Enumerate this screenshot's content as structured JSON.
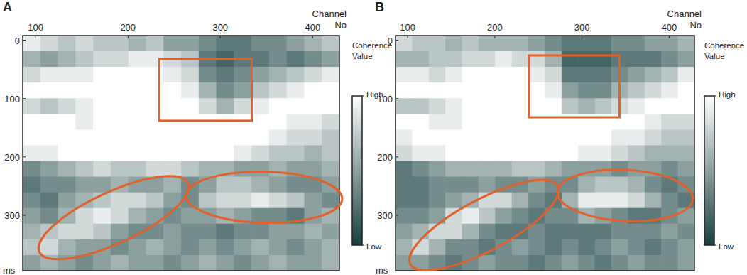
{
  "chart_data": [
    {
      "type": "heatmap",
      "title": "A",
      "x_label": "Channel No",
      "y_label": "ms",
      "xlim": [
        86,
        429
      ],
      "xticks": [
        100,
        200,
        300,
        400
      ],
      "ylim": [
        -8,
        395
      ],
      "yticks": [
        0,
        100,
        200,
        300
      ],
      "cells": [
        [
          0.9,
          0.8,
          0.7,
          0.8,
          0.7,
          0.7,
          0.6,
          0.7,
          0.5,
          0.5,
          0.4,
          0.3,
          0.3,
          0.4,
          0.4,
          0.5,
          0.6,
          0.7
        ],
        [
          0.6,
          0.5,
          0.6,
          0.7,
          0.8,
          0.8,
          0.9,
          0.9,
          0.8,
          0.7,
          0.3,
          0.2,
          0.3,
          0.3,
          0.4,
          0.3,
          0.4,
          0.5
        ],
        [
          0.8,
          0.9,
          0.9,
          0.9,
          1,
          1,
          1,
          1,
          0.9,
          0.8,
          0.4,
          0.3,
          0.4,
          0.5,
          0.6,
          0.7,
          0.8,
          0.9
        ],
        [
          1,
          1,
          1,
          1,
          1,
          1,
          1,
          1,
          1,
          0.9,
          0.6,
          0.4,
          0.5,
          0.7,
          0.8,
          0.9,
          1,
          1
        ],
        [
          0.8,
          0.7,
          0.8,
          0.9,
          1,
          1,
          1,
          1,
          1,
          1,
          0.8,
          0.6,
          0.8,
          0.9,
          1,
          1,
          1,
          1
        ],
        [
          1,
          1,
          1,
          0.9,
          1,
          1,
          1,
          1,
          1,
          1,
          1,
          1,
          1,
          1,
          1,
          0.9,
          0.9,
          0.8
        ],
        [
          1,
          1,
          1,
          1,
          1,
          1,
          1,
          1,
          1,
          1,
          1,
          1,
          1,
          1,
          0.9,
          0.8,
          0.8,
          0.7
        ],
        [
          0.9,
          0.9,
          1,
          1,
          1,
          1,
          1,
          1,
          1,
          1,
          1,
          1,
          0.9,
          0.8,
          0.7,
          0.7,
          0.6,
          0.7
        ],
        [
          0.4,
          0.5,
          0.6,
          0.7,
          0.8,
          0.7,
          0.7,
          0.8,
          0.8,
          0.7,
          0.6,
          0.6,
          0.5,
          0.5,
          0.6,
          0.5,
          0.5,
          0.6
        ],
        [
          0.3,
          0.4,
          0.4,
          0.5,
          0.5,
          0.6,
          0.5,
          0.5,
          0.6,
          0.4,
          0.5,
          0.7,
          0.7,
          0.6,
          0.5,
          0.4,
          0.4,
          0.5
        ],
        [
          0.4,
          0.3,
          0.5,
          0.6,
          0.7,
          0.8,
          0.8,
          0.7,
          0.5,
          0.4,
          0.7,
          0.8,
          0.8,
          0.9,
          0.8,
          0.7,
          0.5,
          0.4
        ],
        [
          0.5,
          0.4,
          0.6,
          0.8,
          0.9,
          0.8,
          0.6,
          0.5,
          0.4,
          0.5,
          0.5,
          0.6,
          0.5,
          0.4,
          0.4,
          0.3,
          0.5,
          0.6
        ],
        [
          0.6,
          0.7,
          0.8,
          0.8,
          0.7,
          0.5,
          0.4,
          0.4,
          0.5,
          0.4,
          0.4,
          0.3,
          0.4,
          0.4,
          0.5,
          0.5,
          0.6,
          0.5
        ],
        [
          0.7,
          0.8,
          0.6,
          0.5,
          0.5,
          0.4,
          0.5,
          0.6,
          0.5,
          0.4,
          0.5,
          0.4,
          0.5,
          0.6,
          0.5,
          0.4,
          0.5,
          0.6
        ],
        [
          0.5,
          0.6,
          0.5,
          0.4,
          0.5,
          0.6,
          0.5,
          0.5,
          0.4,
          0.5,
          0.6,
          0.5,
          0.4,
          0.5,
          0.6,
          0.5,
          0.5,
          0.6
        ]
      ],
      "colorbar": {
        "label": "Coherence Value",
        "range": [
          0,
          1
        ],
        "colors": [
          "#17403f",
          "#ffffff"
        ],
        "ticks": [
          {
            "value": 1,
            "label": "High"
          },
          {
            "value": 0,
            "label": "Low"
          }
        ]
      },
      "annotations": [
        {
          "shape": "rect",
          "x": [
            234,
            334
          ],
          "y": [
            32,
            138
          ],
          "color": "#e0612a"
        },
        {
          "shape": "ellipse",
          "x": [
            104,
            265
          ],
          "y": [
            363,
            245
          ],
          "color": "#e0612a"
        },
        {
          "shape": "ellipse",
          "x": [
            263,
            432
          ],
          "y": [
            266,
            272
          ],
          "color": "#e0612a"
        }
      ]
    },
    {
      "type": "heatmap",
      "title": "B",
      "x_label": "Channel No",
      "y_label": "ms",
      "xlim": [
        86,
        429
      ],
      "xticks": [
        100,
        200,
        300,
        400
      ],
      "ylim": [
        -8,
        395
      ],
      "yticks": [
        0,
        100,
        200,
        300
      ],
      "cells": [
        [
          0.8,
          0.7,
          0.7,
          0.6,
          0.7,
          0.6,
          0.6,
          0.6,
          0.5,
          0.4,
          0.3,
          0.3,
          0.3,
          0.4,
          0.4,
          0.5,
          0.5,
          0.6
        ],
        [
          0.6,
          0.6,
          0.7,
          0.7,
          0.8,
          0.8,
          0.9,
          0.8,
          0.8,
          0.6,
          0.2,
          0.2,
          0.2,
          0.3,
          0.3,
          0.3,
          0.4,
          0.5
        ],
        [
          0.9,
          0.9,
          0.8,
          0.9,
          1,
          1,
          1,
          1,
          0.9,
          0.8,
          0.3,
          0.3,
          0.3,
          0.4,
          0.5,
          0.6,
          0.7,
          0.9
        ],
        [
          1,
          1,
          1,
          1,
          1,
          1,
          1,
          1,
          1,
          0.9,
          0.5,
          0.4,
          0.4,
          0.6,
          0.7,
          0.8,
          0.9,
          1
        ],
        [
          0.7,
          0.7,
          0.8,
          0.9,
          1,
          1,
          1,
          1,
          1,
          1,
          0.7,
          0.6,
          0.7,
          0.8,
          0.9,
          1,
          1,
          1
        ],
        [
          1,
          1,
          0.9,
          0.9,
          1,
          1,
          1,
          1,
          1,
          1,
          1,
          1,
          1,
          1,
          1,
          0.9,
          0.8,
          0.8
        ],
        [
          0.9,
          1,
          1,
          1,
          1,
          1,
          1,
          1,
          1,
          1,
          1,
          1,
          1,
          0.9,
          0.9,
          0.8,
          0.7,
          0.7
        ],
        [
          0.8,
          0.9,
          0.9,
          1,
          1,
          1,
          1,
          1,
          1,
          1,
          1,
          0.9,
          0.9,
          0.8,
          0.7,
          0.6,
          0.6,
          0.6
        ],
        [
          0.3,
          0.4,
          0.5,
          0.6,
          0.6,
          0.6,
          0.6,
          0.7,
          0.7,
          0.6,
          0.5,
          0.5,
          0.5,
          0.4,
          0.5,
          0.5,
          0.4,
          0.5
        ],
        [
          0.3,
          0.3,
          0.4,
          0.4,
          0.4,
          0.5,
          0.4,
          0.4,
          0.5,
          0.4,
          0.4,
          0.6,
          0.7,
          0.7,
          0.6,
          0.4,
          0.3,
          0.4
        ],
        [
          0.3,
          0.3,
          0.4,
          0.5,
          0.6,
          0.8,
          0.8,
          0.6,
          0.4,
          0.3,
          0.6,
          0.9,
          0.9,
          0.9,
          0.8,
          0.6,
          0.4,
          0.3
        ],
        [
          0.4,
          0.4,
          0.5,
          0.8,
          0.9,
          0.7,
          0.5,
          0.4,
          0.3,
          0.4,
          0.4,
          0.6,
          0.5,
          0.4,
          0.3,
          0.3,
          0.4,
          0.5
        ],
        [
          0.5,
          0.6,
          0.8,
          0.8,
          0.6,
          0.4,
          0.3,
          0.3,
          0.4,
          0.3,
          0.3,
          0.3,
          0.3,
          0.4,
          0.4,
          0.4,
          0.5,
          0.4
        ],
        [
          0.6,
          0.8,
          0.6,
          0.4,
          0.4,
          0.3,
          0.4,
          0.5,
          0.4,
          0.3,
          0.4,
          0.3,
          0.4,
          0.5,
          0.4,
          0.3,
          0.4,
          0.5
        ],
        [
          0.5,
          0.5,
          0.4,
          0.3,
          0.4,
          0.5,
          0.4,
          0.4,
          0.3,
          0.4,
          0.5,
          0.4,
          0.3,
          0.4,
          0.5,
          0.4,
          0.4,
          0.5
        ]
      ],
      "colorbar": {
        "label": "Coherence Value",
        "range": [
          0,
          1
        ],
        "colors": [
          "#17403f",
          "#ffffff"
        ],
        "ticks": [
          {
            "value": 1,
            "label": "High"
          },
          {
            "value": 0,
            "label": "Low"
          }
        ]
      },
      "annotations": [
        {
          "shape": "rect",
          "x": [
            239,
            343
          ],
          "y": [
            26,
            132
          ],
          "color": "#e0612a"
        },
        {
          "shape": "ellipse",
          "x": [
            103,
            272
          ],
          "y": [
            384,
            250
          ],
          "color": "#e0612a"
        },
        {
          "shape": "ellipse",
          "x": [
            272,
            427
          ],
          "y": [
            260,
            272
          ],
          "color": "#e0612a"
        }
      ]
    }
  ]
}
